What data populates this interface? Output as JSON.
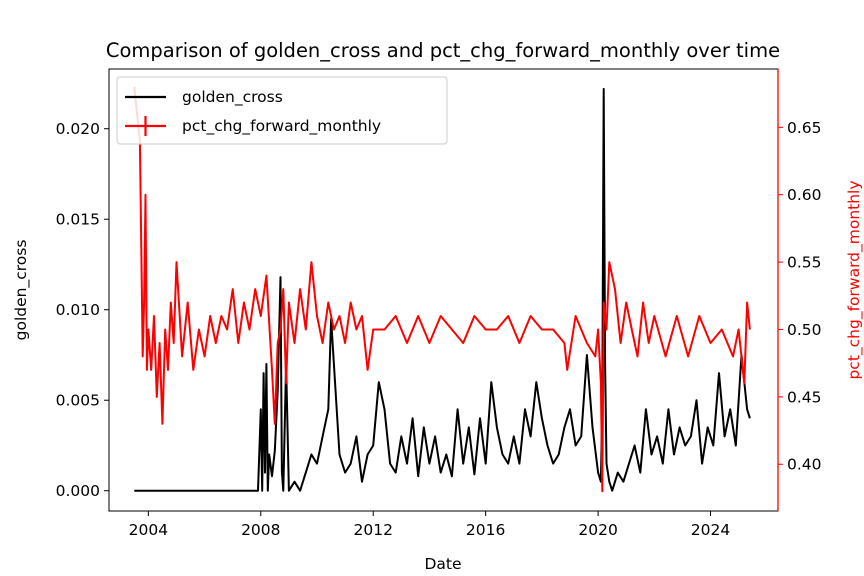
{
  "chart_data": {
    "type": "line",
    "title": "Comparison of golden_cross and pct_chg_forward_monthly over time",
    "xlabel": "Date",
    "ylabel_left": "golden_cross",
    "ylabel_right": "pct_chg_forward_monthly",
    "xlim": [
      2002.6,
      2026.4
    ],
    "ylim_left": [
      -0.00112,
      0.0233
    ],
    "ylim_right": [
      0.3653,
      0.6933
    ],
    "x_ticks": [
      2004,
      2008,
      2012,
      2016,
      2020,
      2024
    ],
    "y_ticks_left": [
      "0.000",
      "0.005",
      "0.010",
      "0.015",
      "0.020"
    ],
    "y_ticks_right": [
      "0.40",
      "0.45",
      "0.50",
      "0.55",
      "0.60",
      "0.65"
    ],
    "legend_position": "upper-left",
    "grid": false,
    "colors": {
      "golden_cross": "#000000",
      "pct_chg_forward_monthly": "#ff0000"
    },
    "series": [
      {
        "name": "golden_cross",
        "axis": "left",
        "x": [
          2003.5,
          2005.0,
          2007.0,
          2007.9,
          2008.0,
          2008.05,
          2008.1,
          2008.15,
          2008.2,
          2008.25,
          2008.3,
          2008.4,
          2008.5,
          2008.6,
          2008.7,
          2008.75,
          2008.8,
          2008.9,
          2009.0,
          2009.2,
          2009.4,
          2009.6,
          2009.8,
          2010.0,
          2010.2,
          2010.4,
          2010.5,
          2010.6,
          2010.8,
          2011.0,
          2011.2,
          2011.4,
          2011.6,
          2011.8,
          2012.0,
          2012.2,
          2012.4,
          2012.6,
          2012.8,
          2013.0,
          2013.2,
          2013.4,
          2013.6,
          2013.8,
          2014.0,
          2014.2,
          2014.4,
          2014.6,
          2014.8,
          2015.0,
          2015.2,
          2015.4,
          2015.6,
          2015.8,
          2016.0,
          2016.2,
          2016.4,
          2016.6,
          2016.8,
          2017.0,
          2017.2,
          2017.4,
          2017.6,
          2017.8,
          2018.0,
          2018.2,
          2018.4,
          2018.6,
          2018.8,
          2019.0,
          2019.2,
          2019.4,
          2019.6,
          2019.8,
          2020.0,
          2020.1,
          2020.15,
          2020.2,
          2020.25,
          2020.3,
          2020.4,
          2020.5,
          2020.7,
          2020.9,
          2021.1,
          2021.3,
          2021.5,
          2021.7,
          2021.9,
          2022.1,
          2022.3,
          2022.5,
          2022.7,
          2022.9,
          2023.1,
          2023.3,
          2023.5,
          2023.7,
          2023.9,
          2024.1,
          2024.3,
          2024.5,
          2024.7,
          2024.9,
          2025.1,
          2025.3,
          2025.4
        ],
        "values": [
          0.0,
          0.0,
          0.0,
          0.0,
          0.0045,
          0.0,
          0.0065,
          0.001,
          0.007,
          0.0,
          0.002,
          0.0008,
          0.0022,
          0.0055,
          0.0118,
          0.001,
          0.0,
          0.007,
          0.0,
          0.0005,
          0.0,
          0.001,
          0.002,
          0.0015,
          0.003,
          0.0045,
          0.0095,
          0.007,
          0.002,
          0.001,
          0.0015,
          0.003,
          0.0005,
          0.002,
          0.0025,
          0.006,
          0.0045,
          0.0015,
          0.001,
          0.003,
          0.0015,
          0.004,
          0.0008,
          0.0035,
          0.0015,
          0.003,
          0.001,
          0.002,
          0.0008,
          0.0045,
          0.0015,
          0.0035,
          0.0009,
          0.004,
          0.0015,
          0.006,
          0.0035,
          0.002,
          0.0015,
          0.003,
          0.0015,
          0.0045,
          0.003,
          0.006,
          0.004,
          0.0025,
          0.0015,
          0.002,
          0.0035,
          0.0045,
          0.0025,
          0.003,
          0.0075,
          0.0035,
          0.001,
          0.0005,
          0.005,
          0.0222,
          0.007,
          0.0015,
          0.0005,
          0.0,
          0.001,
          0.0005,
          0.0015,
          0.0025,
          0.001,
          0.0045,
          0.002,
          0.003,
          0.0015,
          0.0045,
          0.002,
          0.0035,
          0.0025,
          0.003,
          0.005,
          0.0015,
          0.0035,
          0.0025,
          0.0065,
          0.003,
          0.0045,
          0.0025,
          0.0075,
          0.0045,
          0.004
        ]
      },
      {
        "name": "pct_chg_forward_monthly",
        "axis": "right",
        "x": [
          2003.5,
          2003.6,
          2003.7,
          2003.8,
          2003.85,
          2003.9,
          2003.95,
          2004.0,
          2004.1,
          2004.2,
          2004.3,
          2004.4,
          2004.5,
          2004.6,
          2004.7,
          2004.8,
          2004.9,
          2005.0,
          2005.2,
          2005.4,
          2005.6,
          2005.8,
          2006.0,
          2006.2,
          2006.4,
          2006.6,
          2006.8,
          2007.0,
          2007.2,
          2007.4,
          2007.6,
          2007.8,
          2008.0,
          2008.2,
          2008.4,
          2008.5,
          2008.6,
          2008.7,
          2008.8,
          2008.9,
          2009.0,
          2009.2,
          2009.4,
          2009.6,
          2009.8,
          2010.0,
          2010.2,
          2010.4,
          2010.6,
          2010.8,
          2011.0,
          2011.2,
          2011.4,
          2011.6,
          2011.8,
          2012.0,
          2012.4,
          2012.8,
          2013.2,
          2013.6,
          2014.0,
          2014.4,
          2014.8,
          2015.2,
          2015.6,
          2016.0,
          2016.4,
          2016.8,
          2017.2,
          2017.6,
          2018.0,
          2018.4,
          2018.8,
          2018.9,
          2019.2,
          2019.6,
          2019.9,
          2020.0,
          2020.1,
          2020.15,
          2020.2,
          2020.3,
          2020.4,
          2020.6,
          2020.8,
          2021.0,
          2021.2,
          2021.4,
          2021.6,
          2021.8,
          2022.0,
          2022.4,
          2022.8,
          2023.2,
          2023.6,
          2024.0,
          2024.4,
          2024.8,
          2025.0,
          2025.2,
          2025.3,
          2025.4
        ],
        "values": [
          0.68,
          0.66,
          0.64,
          0.48,
          0.52,
          0.6,
          0.47,
          0.5,
          0.47,
          0.51,
          0.45,
          0.49,
          0.43,
          0.5,
          0.47,
          0.52,
          0.49,
          0.55,
          0.48,
          0.52,
          0.47,
          0.5,
          0.48,
          0.51,
          0.49,
          0.51,
          0.5,
          0.53,
          0.49,
          0.52,
          0.5,
          0.53,
          0.51,
          0.54,
          0.47,
          0.43,
          0.49,
          0.5,
          0.53,
          0.46,
          0.52,
          0.49,
          0.53,
          0.5,
          0.55,
          0.51,
          0.49,
          0.52,
          0.5,
          0.51,
          0.49,
          0.52,
          0.5,
          0.51,
          0.47,
          0.5,
          0.5,
          0.51,
          0.49,
          0.51,
          0.49,
          0.51,
          0.5,
          0.49,
          0.51,
          0.5,
          0.5,
          0.51,
          0.49,
          0.51,
          0.5,
          0.5,
          0.49,
          0.47,
          0.51,
          0.49,
          0.48,
          0.5,
          0.46,
          0.38,
          0.52,
          0.5,
          0.55,
          0.53,
          0.49,
          0.52,
          0.5,
          0.48,
          0.52,
          0.49,
          0.51,
          0.48,
          0.51,
          0.48,
          0.51,
          0.49,
          0.5,
          0.48,
          0.5,
          0.46,
          0.52,
          0.5
        ]
      }
    ]
  }
}
